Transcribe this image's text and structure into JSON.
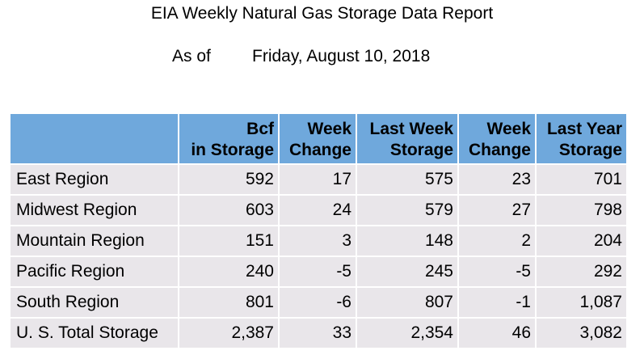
{
  "report": {
    "title": "EIA Weekly Natural Gas Storage Data Report",
    "as_of_label": "As of",
    "as_of_date": "Friday, August 10, 2018"
  },
  "table": {
    "headers": [
      {
        "line1": "",
        "line2": ""
      },
      {
        "line1": "Bcf",
        "line2": "in Storage"
      },
      {
        "line1": "Week",
        "line2": "Change"
      },
      {
        "line1": "Last Week",
        "line2": "Storage"
      },
      {
        "line1": "Week",
        "line2": "Change"
      },
      {
        "line1": "Last Year",
        "line2": "Storage"
      }
    ],
    "rows": [
      [
        "East Region",
        "592",
        "17",
        "575",
        "23",
        "701"
      ],
      [
        "Midwest Region",
        "603",
        "24",
        "579",
        "27",
        "798"
      ],
      [
        "Mountain Region",
        "151",
        "3",
        "148",
        "2",
        "204"
      ],
      [
        "Pacific Region",
        "240",
        "-5",
        "245",
        "-5",
        "292"
      ],
      [
        "South Region",
        "801",
        "-6",
        "807",
        "-1",
        "1,087"
      ],
      [
        "U. S. Total Storage",
        "2,387",
        "33",
        "2,354",
        "46",
        "3,082"
      ]
    ]
  },
  "colors": {
    "header_fill": "#6fa8dc",
    "cell_fill": "#e9e6ea",
    "text": "#000000"
  }
}
